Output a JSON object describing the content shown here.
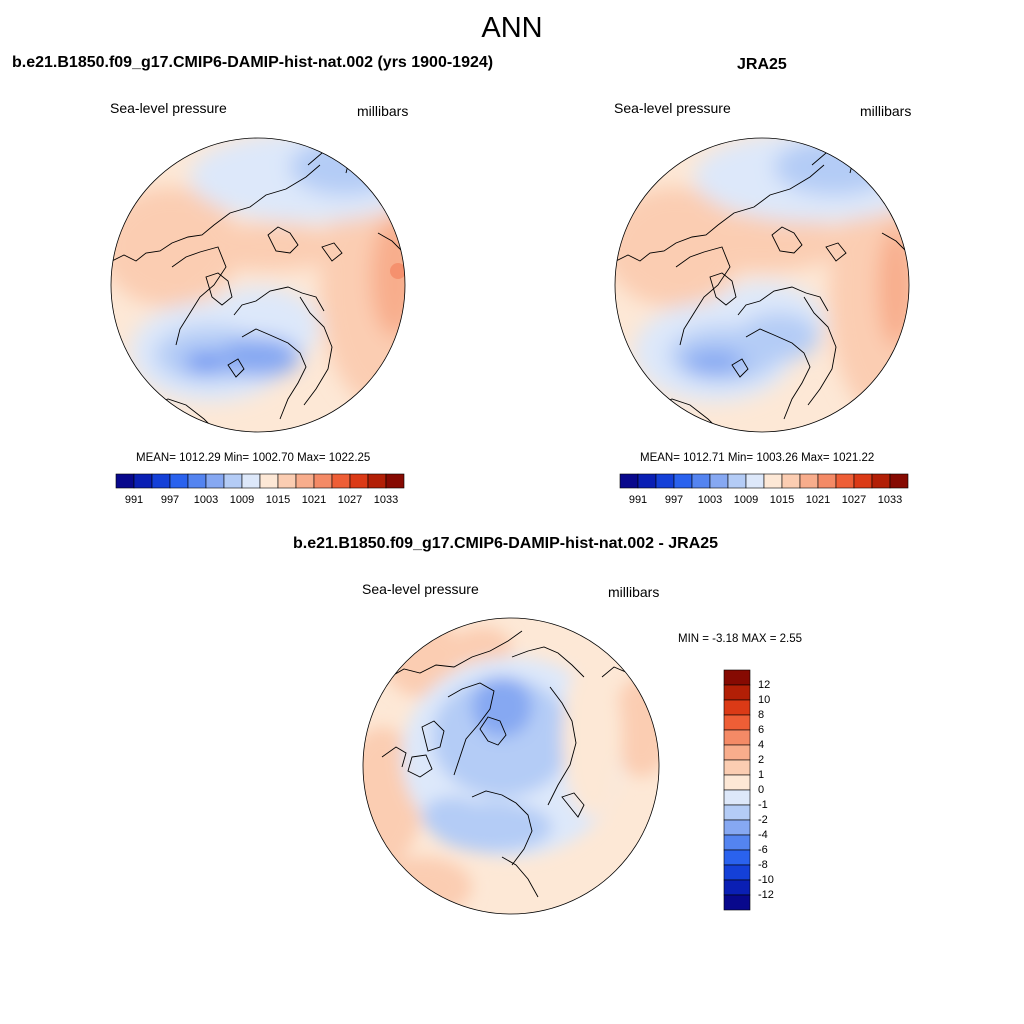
{
  "main_title": "ANN",
  "panel_left": {
    "title": "b.e21.B1850.f09_g17.CMIP6-DAMIP-hist-nat.002 (yrs 1900-1924)",
    "variable": "Sea-level pressure",
    "units": "millibars",
    "stats": "MEAN= 1012.29  Min= 1002.70  Max= 1022.25"
  },
  "panel_right": {
    "title": "JRA25",
    "variable": "Sea-level pressure",
    "units": "millibars",
    "stats": "MEAN= 1012.71  Min= 1003.26  Max= 1021.22"
  },
  "panel_diff": {
    "title": "b.e21.B1850.f09_g17.CMIP6-DAMIP-hist-nat.002 - JRA25",
    "variable": "Sea-level pressure",
    "units": "millibars",
    "stats": "MIN =  -3.18 MAX =   2.55"
  },
  "colorbar_abs": {
    "colors": [
      "#08088c",
      "#0a1fb4",
      "#1440d8",
      "#2a62ee",
      "#5484f0",
      "#86a8f2",
      "#b4ccf6",
      "#dde8fa",
      "#fde8d6",
      "#fbcdb2",
      "#f8ad8c",
      "#f48a66",
      "#ee5e36",
      "#db3a16",
      "#b21f06",
      "#860a02"
    ],
    "labels": [
      "991",
      "997",
      "1003",
      "1009",
      "1015",
      "1021",
      "1027",
      "1033"
    ]
  },
  "colorbar_diff": {
    "colors": [
      "#08088c",
      "#0a1fb4",
      "#1440d8",
      "#2a62ee",
      "#5484f0",
      "#86a8f2",
      "#b4ccf6",
      "#dde8fa",
      "#fde8d6",
      "#fbcdb2",
      "#f8ad8c",
      "#f48a66",
      "#ee5e36",
      "#db3a16",
      "#b21f06",
      "#860a02"
    ],
    "labels": [
      "12",
      "10",
      "8",
      "6",
      "4",
      "2",
      "1",
      "0",
      "-1",
      "-2",
      "-4",
      "-6",
      "-8",
      "-10",
      "-12"
    ]
  },
  "colors": {
    "land_outline": "#000000",
    "map_border": "#000000"
  }
}
